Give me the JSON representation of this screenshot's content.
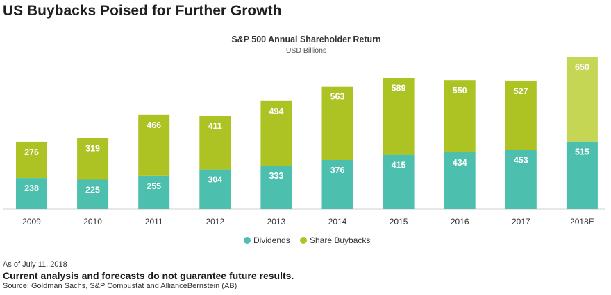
{
  "headline": "US Buybacks Poised for Further Growth",
  "chart_data": {
    "type": "bar",
    "stacked": true,
    "title": "S&P 500 Annual Shareholder Return",
    "subtitle": "USD Billions",
    "categories": [
      "2009",
      "2010",
      "2011",
      "2012",
      "2013",
      "2014",
      "2015",
      "2016",
      "2017",
      "2018E"
    ],
    "series": [
      {
        "name": "Dividends",
        "color": "#4dbfae",
        "values": [
          238,
          225,
          255,
          304,
          333,
          376,
          415,
          434,
          453,
          515
        ]
      },
      {
        "name": "Share Buybacks",
        "color": "#acc323",
        "estimate_color": "#c5d655",
        "values": [
          276,
          319,
          466,
          411,
          494,
          563,
          589,
          550,
          527,
          650
        ]
      }
    ],
    "estimate_category": "2018E",
    "ylim": [
      0,
      1165
    ],
    "grid": false,
    "legend_position": "bottom",
    "value_labels": true
  },
  "footer": {
    "as_of": "As of July 11, 2018",
    "disclaimer": "Current analysis and forecasts do not guarantee future results.",
    "source": "Source: Goldman Sachs, S&P Compustat and AllianceBernstein (AB)"
  }
}
